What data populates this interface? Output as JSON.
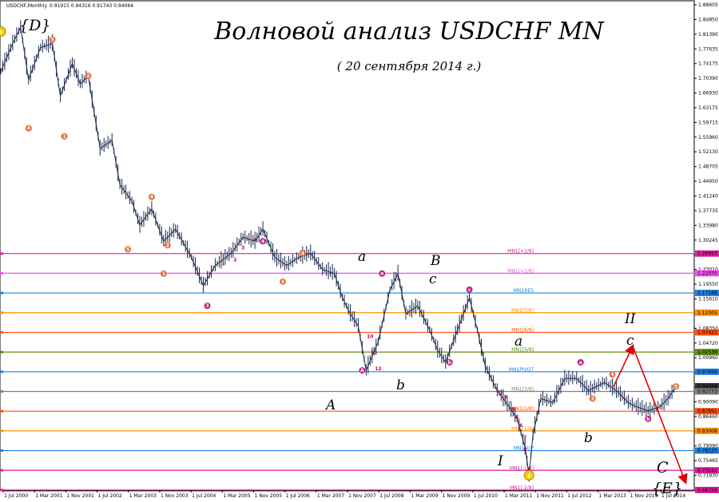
{
  "header": {
    "symbol": "USDCHF,Monthly",
    "ohlc": "0.91915 0.94316 0.91743 0.94064"
  },
  "title": "Волновой анализ USDCHF MN",
  "subtitle": "( 20 сентября 2014 г.)",
  "chart_data": {
    "type": "line",
    "symbol": "USDCHF",
    "timeframe": "Monthly",
    "ylim": [
      0.6835,
      1.886
    ],
    "xlim_months": [
      "2000-07",
      "2014-12"
    ],
    "y_ticks": [
      "1.88605",
      "1.84850",
      "1.81390",
      "1.77635",
      "1.74175",
      "1.70390",
      "1.66930",
      "1.63175",
      "1.59715",
      "1.55960",
      "1.52130",
      "1.48705",
      "1.44950",
      "1.41240",
      "1.37735",
      "1.33980",
      "1.30245",
      "1.26765",
      "1.23010",
      "1.19550",
      "1.15610",
      "1.12335",
      "1.08350",
      "1.04720",
      "1.00960",
      "0.97635",
      "0.94064",
      "0.90090",
      "0.86460",
      "0.82935",
      "0.79090",
      "0.75465",
      "0.71830",
      "0.68339"
    ],
    "x_ticks": [
      "1 Jul 2000",
      "1 Mar 2001",
      "1 Nov 2001",
      "1 Jul 2002",
      "1 Mar 2003",
      "1 Nov 2003",
      "1 Jul 2004",
      "1 Mar 2005",
      "1 Nov 2005",
      "1 Jul 2006",
      "1 Mar 2007",
      "1 Nov 2007",
      "1 Jul 2008",
      "1 Mar 2009",
      "1 Nov 2009",
      "1 Jul 2010",
      "1 Mar 2011",
      "1 Nov 2011",
      "1 Jul 2012",
      "1 Mar 2013",
      "1 Nov 2013",
      "1 Jul 2014"
    ],
    "price_path": [
      [
        "2000-07",
        1.72
      ],
      [
        "2000-10",
        1.79
      ],
      [
        "2000-12",
        1.83
      ],
      [
        "2001-02",
        1.7
      ],
      [
        "2001-05",
        1.78
      ],
      [
        "2001-08",
        1.79
      ],
      [
        "2001-10",
        1.66
      ],
      [
        "2002-01",
        1.74
      ],
      [
        "2002-03",
        1.69
      ],
      [
        "2002-05",
        1.71
      ],
      [
        "2002-08",
        1.53
      ],
      [
        "2002-11",
        1.55
      ],
      [
        "2003-01",
        1.44
      ],
      [
        "2003-04",
        1.4
      ],
      [
        "2003-06",
        1.34
      ],
      [
        "2003-09",
        1.38
      ],
      [
        "2003-12",
        1.3
      ],
      [
        "2004-03",
        1.33
      ],
      [
        "2004-07",
        1.26
      ],
      [
        "2004-10",
        1.19
      ],
      [
        "2005-01",
        1.24
      ],
      [
        "2005-05",
        1.27
      ],
      [
        "2005-08",
        1.31
      ],
      [
        "2005-11",
        1.3
      ],
      [
        "2006-01",
        1.33
      ],
      [
        "2006-04",
        1.26
      ],
      [
        "2006-07",
        1.24
      ],
      [
        "2006-10",
        1.26
      ],
      [
        "2007-01",
        1.27
      ],
      [
        "2007-04",
        1.23
      ],
      [
        "2007-07",
        1.22
      ],
      [
        "2007-09",
        1.16
      ],
      [
        "2007-11",
        1.12
      ],
      [
        "2008-01",
        1.09
      ],
      [
        "2008-03",
        0.98
      ],
      [
        "2008-06",
        1.05
      ],
      [
        "2008-09",
        1.18
      ],
      [
        "2008-11",
        1.22
      ],
      [
        "2009-01",
        1.12
      ],
      [
        "2009-04",
        1.14
      ],
      [
        "2009-07",
        1.08
      ],
      [
        "2009-09",
        1.03
      ],
      [
        "2009-11",
        1.0
      ],
      [
        "2010-02",
        1.08
      ],
      [
        "2010-05",
        1.16
      ],
      [
        "2010-07",
        1.08
      ],
      [
        "2010-09",
        0.99
      ],
      [
        "2010-12",
        0.93
      ],
      [
        "2011-03",
        0.89
      ],
      [
        "2011-05",
        0.86
      ],
      [
        "2011-07",
        0.79
      ],
      [
        "2011-08",
        0.72
      ],
      [
        "2011-09",
        0.82
      ],
      [
        "2011-11",
        0.91
      ],
      [
        "2012-02",
        0.9
      ],
      [
        "2012-05",
        0.96
      ],
      [
        "2012-08",
        0.96
      ],
      [
        "2012-11",
        0.93
      ],
      [
        "2013-03",
        0.95
      ],
      [
        "2013-06",
        0.93
      ],
      [
        "2013-09",
        0.9
      ],
      [
        "2013-11",
        0.89
      ],
      [
        "2014-02",
        0.88
      ],
      [
        "2014-05",
        0.89
      ],
      [
        "2014-07",
        0.91
      ],
      [
        "2014-09",
        0.94
      ]
    ],
    "levels": [
      {
        "name": "MN1[+2/8]",
        "price": 1.26953,
        "color": "#e0209a"
      },
      {
        "name": "MN1[+1/8]",
        "price": 1.2207,
        "color": "#f050f0"
      },
      {
        "name": "MN1RES",
        "price": 1.17188,
        "color": "#2080e0"
      },
      {
        "name": "MN1[7/8]",
        "price": 1.12305,
        "color": "#ff9000"
      },
      {
        "name": "MN1[6/8]",
        "price": 1.07422,
        "color": "#ff5010"
      },
      {
        "name": "MN1[5/8]",
        "price": 1.02539,
        "color": "#609010"
      },
      {
        "name": "MN1PIVOT",
        "price": 0.97656,
        "color": "#2080e0"
      },
      {
        "name": "MN1[3/8]",
        "price": 0.92773,
        "color": "#808080"
      },
      {
        "name": "MN1[2/8]",
        "price": 0.87891,
        "color": "#ff5010"
      },
      {
        "name": "MN1[1/8]",
        "price": 0.83008,
        "color": "#ff9000"
      },
      {
        "name": "MN1SUP",
        "price": 0.78125,
        "color": "#2080e0"
      },
      {
        "name": "MN1[-1/8]",
        "price": 0.73242,
        "color": "#e0209a"
      },
      {
        "name": "MN1[-2/8]",
        "price": 0.68359,
        "color": "#e0209a"
      }
    ],
    "level_tags": [
      "1.26953",
      "1.22070",
      "1.17188",
      "1.12305",
      "1.07422",
      "1.02539",
      "0.97656",
      "0.94064",
      "0.92773",
      "0.87891",
      "0.83008",
      "0.78125",
      "0.73242",
      "0.68359"
    ],
    "wave_labels": [
      "{D}",
      "a",
      "B",
      "c",
      "A",
      "b",
      "a",
      "c",
      "b",
      "II",
      "c",
      "I",
      "C",
      "{E}"
    ],
    "major_markers": [
      {
        "label": "3",
        "date": "2000-07",
        "price": 1.82,
        "color": "#f0d000",
        "text_color": "#806000"
      },
      {
        "label": "3",
        "date": "2011-08",
        "price": 0.72,
        "color": "#f0d000",
        "text_color": "#806000"
      }
    ],
    "minor_markers": [
      {
        "label": "4",
        "date": "2001-02",
        "price": 1.58,
        "color": "#e07040"
      },
      {
        "label": "5",
        "date": "2001-08",
        "price": 1.8,
        "color": "#e07040"
      },
      {
        "label": "1",
        "date": "2001-11",
        "price": 1.56,
        "color": "#e07040"
      },
      {
        "label": "2",
        "date": "2002-05",
        "price": 1.71,
        "color": "#e07040"
      },
      {
        "label": "4",
        "date": "2003-09",
        "price": 1.41,
        "color": "#e07040"
      },
      {
        "label": "5",
        "date": "2003-03",
        "price": 1.28,
        "color": "#e07040"
      },
      {
        "label": "2",
        "date": "2004-01",
        "price": 1.29,
        "color": "#e07040"
      },
      {
        "label": "1",
        "date": "2003-12",
        "price": 1.22,
        "color": "#e07040"
      },
      {
        "label": "3",
        "date": "2004-11",
        "price": 1.14,
        "color": "#c02080"
      },
      {
        "label": "4",
        "date": "2006-01",
        "price": 1.3,
        "color": "#c02080"
      },
      {
        "label": "4",
        "date": "2006-11",
        "price": 1.27,
        "color": "#e07040"
      },
      {
        "label": "5",
        "date": "2006-06",
        "price": 1.2,
        "color": "#e07040"
      },
      {
        "label": "A",
        "date": "2008-02",
        "price": 0.98,
        "color": "#c02080"
      },
      {
        "label": "a",
        "date": "2008-07",
        "price": 1.22,
        "color": "#c02080"
      },
      {
        "label": "b",
        "date": "2009-12",
        "price": 1.0,
        "color": "#c02080"
      },
      {
        "label": "c",
        "date": "2010-05",
        "price": 1.18,
        "color": "#c02080"
      },
      {
        "label": "a",
        "date": "2012-09",
        "price": 1.0,
        "color": "#c02080"
      },
      {
        "label": "3",
        "date": "2012-12",
        "price": 0.91,
        "color": "#e07040"
      },
      {
        "label": "4",
        "date": "2013-05",
        "price": 0.97,
        "color": "#e07040"
      },
      {
        "label": "b",
        "date": "2014-02",
        "price": 0.86,
        "color": "#c02080"
      },
      {
        "label": "5",
        "date": "2014-09",
        "price": 0.94,
        "color": "#e07040"
      }
    ],
    "sub_labels": [
      {
        "text": "1",
        "date": "2005-03",
        "price": 1.24
      },
      {
        "text": "2",
        "date": "2005-06",
        "price": 1.25
      },
      {
        "text": "3",
        "date": "2005-08",
        "price": 1.28
      },
      {
        "text": "4",
        "date": "2005-11",
        "price": 1.3
      },
      {
        "text": "10",
        "date": "2008-04",
        "price": 1.06
      },
      {
        "text": "11",
        "date": "2008-05",
        "price": 1.02
      },
      {
        "text": "12",
        "date": "2008-06",
        "price": 0.98
      },
      {
        "text": "1",
        "date": "2010-12",
        "price": 0.93
      },
      {
        "text": "2",
        "date": "2011-01",
        "price": 0.92
      },
      {
        "text": "3",
        "date": "2011-02",
        "price": 0.91
      },
      {
        "text": "4",
        "date": "2011-04",
        "price": 0.88
      },
      {
        "text": "5",
        "date": "2011-05",
        "price": 0.86
      },
      {
        "text": "6",
        "date": "2011-06",
        "price": 0.84
      },
      {
        "text": "7",
        "date": "2011-07",
        "price": 0.81
      },
      {
        "text": "8",
        "date": "2011-07",
        "price": 0.78
      }
    ],
    "projection": [
      [
        "2014-09",
        0.94
      ],
      [
        "2015-01",
        1.04
      ],
      [
        "2016-07",
        0.68
      ]
    ]
  }
}
